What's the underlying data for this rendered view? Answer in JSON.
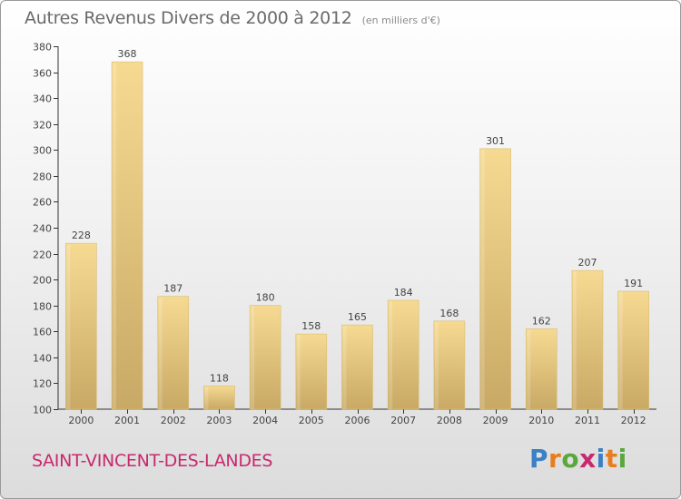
{
  "chart_data": {
    "type": "bar",
    "title": "Autres Revenus Divers de 2000 à 2012",
    "subtitle": "(en milliers d'€)",
    "categories": [
      "2000",
      "2001",
      "2002",
      "2003",
      "2004",
      "2005",
      "2006",
      "2007",
      "2008",
      "2009",
      "2010",
      "2011",
      "2012"
    ],
    "values": [
      228,
      368,
      187,
      118,
      180,
      158,
      165,
      184,
      168,
      301,
      162,
      207,
      191
    ],
    "ylim": [
      100,
      380
    ],
    "yticks": [
      100,
      120,
      140,
      160,
      180,
      200,
      220,
      240,
      260,
      280,
      300,
      320,
      340,
      360,
      380
    ],
    "grid": false,
    "bar_color": "#e8cd85"
  },
  "footer": {
    "city": "SAINT-VINCENT-DES-LANDES",
    "logo_letters": [
      "P",
      "r",
      "o",
      "x",
      "i",
      "t",
      "i"
    ],
    "logo_colors": [
      "#3b7fc4",
      "#e87d1e",
      "#59a83b",
      "#c8286e",
      "#3b7fc4",
      "#e87d1e",
      "#59a83b"
    ]
  }
}
